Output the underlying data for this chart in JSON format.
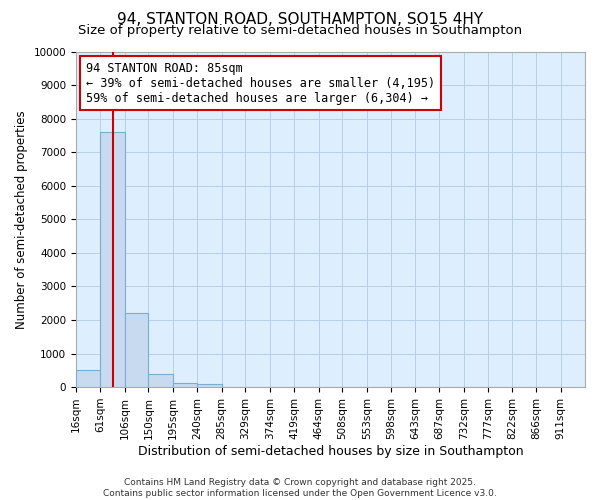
{
  "title": "94, STANTON ROAD, SOUTHAMPTON, SO15 4HY",
  "subtitle": "Size of property relative to semi-detached houses in Southampton",
  "xlabel": "Distribution of semi-detached houses by size in Southampton",
  "ylabel": "Number of semi-detached properties",
  "bin_labels": [
    "16sqm",
    "61sqm",
    "106sqm",
    "150sqm",
    "195sqm",
    "240sqm",
    "285sqm",
    "329sqm",
    "374sqm",
    "419sqm",
    "464sqm",
    "508sqm",
    "553sqm",
    "598sqm",
    "643sqm",
    "687sqm",
    "732sqm",
    "777sqm",
    "822sqm",
    "866sqm",
    "911sqm"
  ],
  "bin_edges": [
    16,
    61,
    106,
    150,
    195,
    240,
    285,
    329,
    374,
    419,
    464,
    508,
    553,
    598,
    643,
    687,
    732,
    777,
    822,
    866,
    911
  ],
  "bar_values": [
    500,
    7600,
    2200,
    380,
    120,
    80,
    0,
    0,
    0,
    0,
    0,
    0,
    0,
    0,
    0,
    0,
    0,
    0,
    0,
    0
  ],
  "bar_color": "#c8daf0",
  "bar_edge_color": "#7aadd4",
  "vline_x": 85,
  "vline_color": "#cc0000",
  "annotation_line1": "94 STANTON ROAD: 85sqm",
  "annotation_line2": "← 39% of semi-detached houses are smaller (4,195)",
  "annotation_line3": "59% of semi-detached houses are larger (6,304) →",
  "annotation_box_color": "#ffffff",
  "annotation_box_edge_color": "#cc0000",
  "ylim": [
    0,
    10000
  ],
  "yticks": [
    0,
    1000,
    2000,
    3000,
    4000,
    5000,
    6000,
    7000,
    8000,
    9000,
    10000
  ],
  "ax_background_color": "#ddeeff",
  "figure_background_color": "#ffffff",
  "grid_color": "#b8cfe8",
  "footer_text": "Contains HM Land Registry data © Crown copyright and database right 2025.\nContains public sector information licensed under the Open Government Licence v3.0.",
  "title_fontsize": 11,
  "subtitle_fontsize": 9.5,
  "xlabel_fontsize": 9,
  "ylabel_fontsize": 8.5,
  "tick_fontsize": 7.5,
  "annotation_fontsize": 8.5,
  "footer_fontsize": 6.5
}
